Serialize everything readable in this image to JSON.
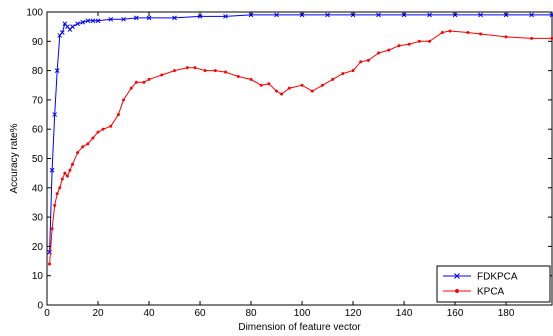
{
  "chart_data": {
    "type": "line",
    "xlabel": "Dimension of feature vector",
    "ylabel": "Accuracy rate%",
    "xlim": [
      0,
      198
    ],
    "ylim": [
      0,
      100
    ],
    "xticks": [
      0,
      20,
      40,
      60,
      80,
      100,
      120,
      140,
      160,
      180
    ],
    "yticks": [
      0,
      10,
      20,
      30,
      40,
      50,
      60,
      70,
      80,
      90,
      100
    ],
    "grid": false,
    "legend_position": "bottom-right",
    "series": [
      {
        "name": "FDKPCA",
        "color": "#0000ff",
        "marker": "x",
        "x": [
          1,
          2,
          3,
          4,
          5,
          6,
          7,
          8,
          9,
          10,
          12,
          14,
          16,
          18,
          20,
          25,
          30,
          35,
          40,
          50,
          60,
          70,
          80,
          90,
          100,
          110,
          120,
          130,
          140,
          150,
          160,
          170,
          180,
          190,
          198
        ],
        "y": [
          18,
          46,
          65,
          80,
          92,
          93,
          96,
          95,
          94,
          95,
          96,
          96.5,
          97,
          97,
          97,
          97.5,
          97.5,
          98,
          98,
          98,
          98.5,
          98.5,
          99,
          99,
          99,
          99,
          99,
          99,
          99,
          99,
          99,
          99,
          99,
          99,
          99
        ]
      },
      {
        "name": "KPCA",
        "color": "#ff0000",
        "marker": ".",
        "x": [
          1,
          2,
          3,
          4,
          5,
          6,
          7,
          8,
          9,
          10,
          12,
          14,
          16,
          18,
          20,
          22,
          25,
          28,
          30,
          33,
          35,
          38,
          40,
          45,
          50,
          55,
          58,
          62,
          66,
          70,
          75,
          80,
          84,
          87,
          90,
          92,
          95,
          100,
          104,
          108,
          112,
          116,
          120,
          123,
          126,
          130,
          134,
          138,
          142,
          146,
          150,
          155,
          158,
          165,
          170,
          180,
          190,
          198
        ],
        "y": [
          14,
          26,
          34,
          38,
          40,
          43,
          45,
          44,
          46,
          48,
          52,
          54,
          55,
          57,
          59,
          60,
          61,
          65,
          70,
          74,
          76,
          76,
          77,
          78.5,
          80,
          81,
          81,
          80,
          80,
          79.5,
          78,
          77,
          75,
          75.5,
          73,
          72,
          74,
          75,
          73,
          75,
          77,
          79,
          80,
          83,
          83.5,
          86,
          87,
          88.5,
          89,
          90,
          90,
          93,
          93.5,
          93,
          92.5,
          91.5,
          91,
          91
        ]
      }
    ]
  }
}
